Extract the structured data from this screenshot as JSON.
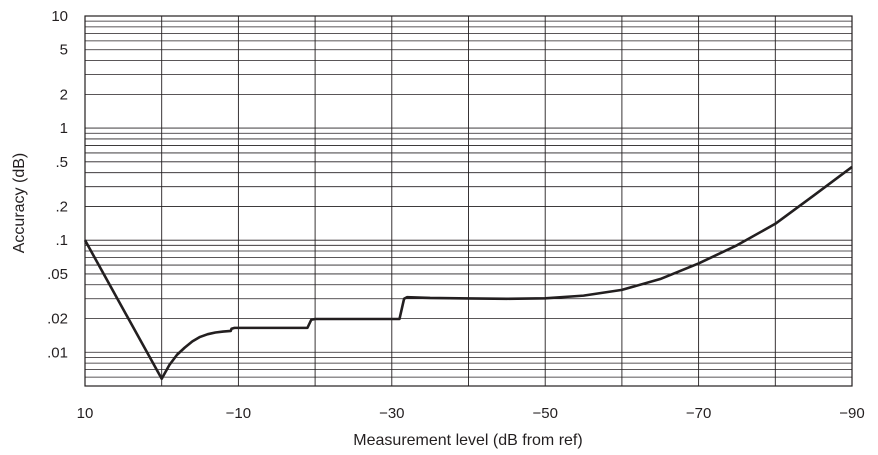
{
  "chart_data": {
    "type": "line",
    "title": "",
    "xlabel": "Measurement level (dB from ref)",
    "ylabel": "Accuracy (dB)",
    "x_scale": "linear",
    "y_scale": "log",
    "xlim": [
      10,
      -90
    ],
    "ylim": [
      0.005,
      10
    ],
    "x_tick_values": [
      10,
      -10,
      -30,
      -50,
      -70,
      -90
    ],
    "x_tick_labels": [
      "10",
      "−10",
      "−30",
      "−50",
      "−70",
      "−90"
    ],
    "y_tick_values": [
      10,
      5,
      2,
      1,
      0.5,
      0.2,
      0.1,
      0.05,
      0.02,
      0.01
    ],
    "y_tick_labels": [
      "10",
      "5",
      "2",
      "1",
      ".5",
      ".2",
      ".1",
      ".05",
      ".02",
      ".01"
    ],
    "grid": true,
    "legend": "none",
    "line_color": "#231f20",
    "grid_color": "#231f20",
    "series": [
      {
        "x": [
          10,
          0,
          -1,
          -2,
          -3,
          -4,
          -5,
          -6,
          -7,
          -8,
          -9,
          -9.1,
          -9.5,
          -19,
          -19.5,
          -20,
          -31,
          -31.6,
          -32,
          -35,
          -40,
          -45,
          -50,
          -55,
          -60,
          -65,
          -70,
          -75,
          -80,
          -85,
          -90
        ],
        "y": [
          0.1,
          0.0058,
          0.0077,
          0.0095,
          0.011,
          0.0125,
          0.0137,
          0.0145,
          0.015,
          0.0153,
          0.0155,
          0.0162,
          0.0165,
          0.0165,
          0.0195,
          0.0198,
          0.0198,
          0.03,
          0.031,
          0.0305,
          0.0302,
          0.03,
          0.0303,
          0.032,
          0.036,
          0.045,
          0.062,
          0.09,
          0.14,
          0.25,
          0.45
        ]
      }
    ]
  }
}
